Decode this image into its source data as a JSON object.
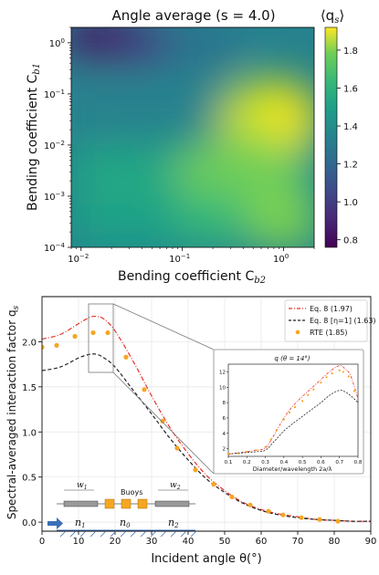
{
  "heatmap": {
    "title": "Angle average (s = 4.0)",
    "xlabel": "Bending coefficient C",
    "xlabel_sub": "b2",
    "ylabel": "Bending coefficient C",
    "ylabel_sub": "b1",
    "colorbar_label": "⟨q",
    "colorbar_label_sub": "s",
    "colorbar_label_end": "⟩",
    "x_ticks": [
      {
        "exp": -2,
        "label": "10",
        "sup": "−2"
      },
      {
        "exp": -1,
        "label": "10",
        "sup": "−1"
      },
      {
        "exp": 0,
        "label": "10",
        "sup": "0"
      }
    ],
    "y_ticks": [
      {
        "exp": -4,
        "label": "10",
        "sup": "−4"
      },
      {
        "exp": -3,
        "label": "10",
        "sup": "−3"
      },
      {
        "exp": -2,
        "label": "10",
        "sup": "−2"
      },
      {
        "exp": -1,
        "label": "10",
        "sup": "−1"
      },
      {
        "exp": 0,
        "label": "10",
        "sup": "0"
      }
    ],
    "colorbar_ticks": [
      "0.8",
      "1.0",
      "1.2",
      "1.4",
      "1.6",
      "1.8"
    ],
    "colorbar_values": [
      0.8,
      1.0,
      1.2,
      1.4,
      1.6,
      1.8
    ],
    "colorbar_range": [
      0.76,
      1.92
    ],
    "colormap": "viridis"
  },
  "chart_data": [
    {
      "type": "heatmap",
      "title": "Angle average (s = 4.0)",
      "xlabel": "Bending coefficient C_b2",
      "ylabel": "Bending coefficient C_b1",
      "x_scale": "log",
      "y_scale": "log",
      "xlim": [
        0.008,
        2.0
      ],
      "ylim": [
        0.0001,
        2.0
      ],
      "z_range": [
        0.78,
        1.9
      ],
      "z_label": "⟨q_s⟩",
      "description_points": [
        {
          "x": 0.01,
          "y": 2.0,
          "z": 0.8
        },
        {
          "x": 0.01,
          "y": 0.0001,
          "z": 1.5
        },
        {
          "x": 1.5,
          "y": 0.1,
          "z": 1.9
        },
        {
          "x": 2.0,
          "y": 0.0001,
          "z": 1.55
        }
      ]
    },
    {
      "type": "line",
      "xlabel": "Incident angle θ(°)",
      "ylabel": "Spectral-averaged interaction factor q",
      "xlim": [
        0,
        90
      ],
      "ylim": [
        -0.1,
        2.5
      ],
      "x_ticks": [
        0,
        10,
        20,
        30,
        40,
        50,
        60,
        70,
        80,
        90
      ],
      "y_ticks": [
        0.0,
        0.5,
        1.0,
        1.5,
        2.0
      ],
      "grid": true,
      "legend_position": "top-right",
      "series": [
        {
          "name": "Eq. 8 (1.97)",
          "style": "dash-dot",
          "color": "#e8322b",
          "x": [
            0,
            5,
            10,
            13,
            15,
            17,
            20,
            25,
            30,
            35,
            40,
            45,
            50,
            55,
            60,
            65,
            70,
            75,
            80,
            85,
            90
          ],
          "y": [
            2.03,
            2.08,
            2.2,
            2.27,
            2.28,
            2.25,
            2.12,
            1.78,
            1.4,
            1.05,
            0.76,
            0.52,
            0.35,
            0.22,
            0.14,
            0.09,
            0.06,
            0.03,
            0.02,
            0.01,
            0.01
          ]
        },
        {
          "name": "Eq. 8 [η=1] (1.63)",
          "style": "dashed",
          "color": "#222222",
          "x": [
            0,
            5,
            10,
            13,
            15,
            17,
            20,
            25,
            30,
            35,
            40,
            45,
            50,
            55,
            60,
            65,
            70,
            75,
            80,
            85,
            90
          ],
          "y": [
            1.68,
            1.72,
            1.82,
            1.86,
            1.86,
            1.82,
            1.72,
            1.46,
            1.2,
            0.93,
            0.69,
            0.48,
            0.33,
            0.21,
            0.13,
            0.08,
            0.05,
            0.03,
            0.02,
            0.01,
            0.01
          ]
        },
        {
          "name": "RTE (1.85)",
          "style": "markers",
          "color": "#f5a623",
          "x": [
            0,
            4,
            9,
            14,
            18,
            23,
            28,
            33,
            37,
            42,
            47,
            52,
            57,
            62,
            66,
            71,
            76,
            81
          ],
          "y": [
            1.94,
            1.96,
            2.06,
            2.1,
            2.1,
            1.83,
            1.47,
            1.12,
            0.82,
            0.58,
            0.42,
            0.28,
            0.19,
            0.12,
            0.08,
            0.05,
            0.03,
            0.01
          ]
        }
      ]
    },
    {
      "type": "line",
      "title": "q (θ = 14°)",
      "xlabel": "Diameter/wavelength 2a/λ",
      "xlim": [
        0.1,
        0.8
      ],
      "ylim": [
        1,
        13
      ],
      "x_ticks": [
        0.1,
        0.2,
        0.3,
        0.4,
        0.5,
        0.6,
        0.7,
        0.8
      ],
      "y_ticks": [
        2,
        4,
        6,
        8,
        10,
        12
      ],
      "series": [
        {
          "name": "Eq. 8",
          "style": "dash-dot",
          "color": "#e8322b",
          "x": [
            0.1,
            0.2,
            0.25,
            0.3,
            0.35,
            0.4,
            0.45,
            0.5,
            0.55,
            0.6,
            0.65,
            0.7,
            0.73,
            0.76,
            0.8
          ],
          "y": [
            1.3,
            1.6,
            1.8,
            2.1,
            3.9,
            6.0,
            7.6,
            8.8,
            9.9,
            11.0,
            12.1,
            12.8,
            12.4,
            11.5,
            8.5
          ]
        },
        {
          "name": "Eq. 8 [η=1]",
          "style": "dashed",
          "color": "#222222",
          "x": [
            0.1,
            0.2,
            0.25,
            0.3,
            0.35,
            0.4,
            0.45,
            0.5,
            0.55,
            0.6,
            0.65,
            0.7,
            0.73,
            0.76,
            0.8
          ],
          "y": [
            1.3,
            1.5,
            1.6,
            1.8,
            3.0,
            4.3,
            5.3,
            6.2,
            7.1,
            8.0,
            9.0,
            9.6,
            9.4,
            8.9,
            8.0
          ]
        },
        {
          "name": "RTE",
          "style": "markers",
          "color": "#f5a623",
          "x": [
            0.1,
            0.15,
            0.2,
            0.25,
            0.3,
            0.33,
            0.36,
            0.4,
            0.43,
            0.46,
            0.5,
            0.53,
            0.56,
            0.6,
            0.63,
            0.66,
            0.7,
            0.72,
            0.75,
            0.78
          ],
          "y": [
            1.3,
            1.4,
            1.6,
            1.8,
            2.2,
            3.2,
            4.4,
            5.8,
            6.7,
            7.4,
            8.2,
            9.0,
            9.7,
            10.6,
            11.3,
            11.8,
            12.2,
            12.0,
            11.4,
            9.5
          ]
        }
      ]
    }
  ],
  "lower": {
    "ylabel": "Spectral-averaged interaction factor q",
    "ylabel_sub": "s",
    "xlabel": "Incident angle θ(°)",
    "x_ticks": [
      "0",
      "10",
      "20",
      "30",
      "40",
      "50",
      "60",
      "70",
      "80",
      "90"
    ],
    "y_ticks": [
      "0.0",
      "0.5",
      "1.0",
      "1.5",
      "2.0"
    ],
    "legend": [
      "Eq. 8 (1.97)",
      "Eq. 8 [η=1] (1.63)",
      "RTE (1.85)"
    ],
    "inset": {
      "title": "q (θ = 14°)",
      "xlabel": "Diameter/wavelength 2a/λ",
      "x_ticks": [
        "0.1",
        "0.2",
        "0.3",
        "0.4",
        "0.5",
        "0.6",
        "0.7",
        "0.8"
      ],
      "y_ticks": [
        "2",
        "4",
        "6",
        "8",
        "10",
        "12"
      ]
    },
    "schematic": {
      "label_buoys": "Buoys",
      "w1": "w",
      "w1_sub": "1",
      "w2": "w",
      "w2_sub": "2",
      "n1": "n",
      "n1_sub": "1",
      "n0": "n",
      "n0_sub": "0",
      "n2": "n",
      "n2_sub": "2"
    }
  },
  "colors": {
    "eq8": "#e8322b",
    "eq8eta": "#222222",
    "rte": "#f5a623",
    "buoy": "#f5a623",
    "arrow": "#3b6fb6",
    "grid": "#e6e6e6"
  }
}
